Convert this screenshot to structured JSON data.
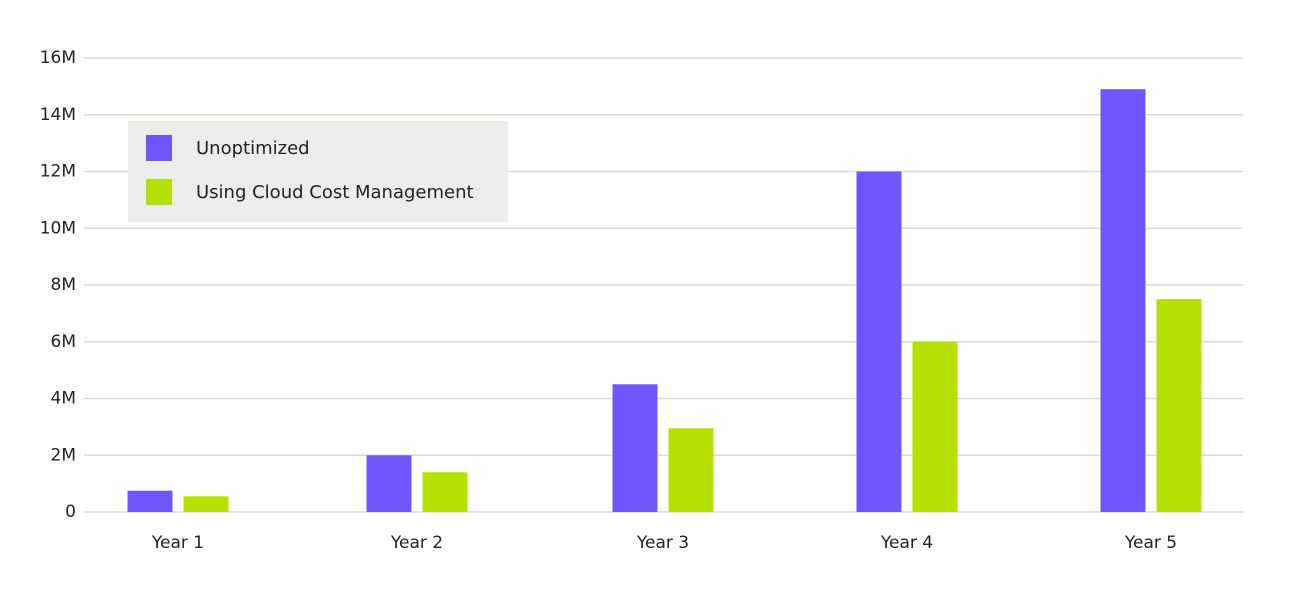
{
  "chart_data": {
    "type": "bar",
    "title": "",
    "xlabel": "",
    "ylabel": "",
    "categories": [
      "Year 1",
      "Year 2",
      "Year 3",
      "Year 4",
      "Year 5"
    ],
    "series": [
      {
        "name": "Unoptimized",
        "color": "#7055fb",
        "values": [
          0.75,
          2.0,
          4.5,
          12.0,
          14.9
        ]
      },
      {
        "name": "Using Cloud Cost Management",
        "color": "#b5e000",
        "values": [
          0.55,
          1.4,
          2.95,
          6.0,
          7.5
        ]
      }
    ],
    "ylim": [
      0,
      16
    ],
    "yticks": [
      0,
      2,
      4,
      6,
      8,
      10,
      12,
      14,
      16
    ],
    "ytick_labels": [
      "0",
      "2M",
      "4M",
      "6M",
      "8M",
      "10M",
      "12M",
      "14M",
      "16M"
    ],
    "y_unit": "millions",
    "grid": true,
    "gridline_color": "#d9d9d9",
    "legend_position": "top-left",
    "legend_background": "#ececea"
  }
}
